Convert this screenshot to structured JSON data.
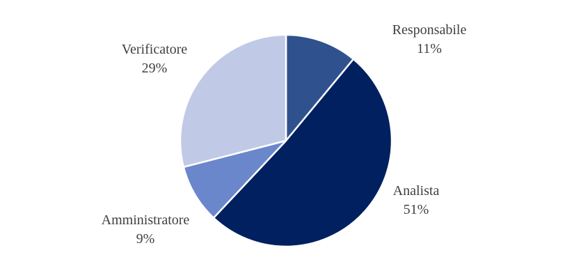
{
  "chart_data": {
    "type": "pie",
    "title": "",
    "slices": [
      {
        "label": "Responsabile",
        "value": 11,
        "value_label": "11%",
        "color": "#2f528f"
      },
      {
        "label": "Analista",
        "value": 51,
        "value_label": "51%",
        "color": "#002060"
      },
      {
        "label": "Amministratore",
        "value": 9,
        "value_label": "9%",
        "color": "#6b87cc"
      },
      {
        "label": "Verificatore",
        "value": 29,
        "value_label": "29%",
        "color": "#c0cae6"
      }
    ],
    "start_angle": "12 o'clock",
    "direction": "clockwise",
    "slice_border_color": "#ffffff",
    "legend": "none",
    "data_labels": "outside"
  }
}
